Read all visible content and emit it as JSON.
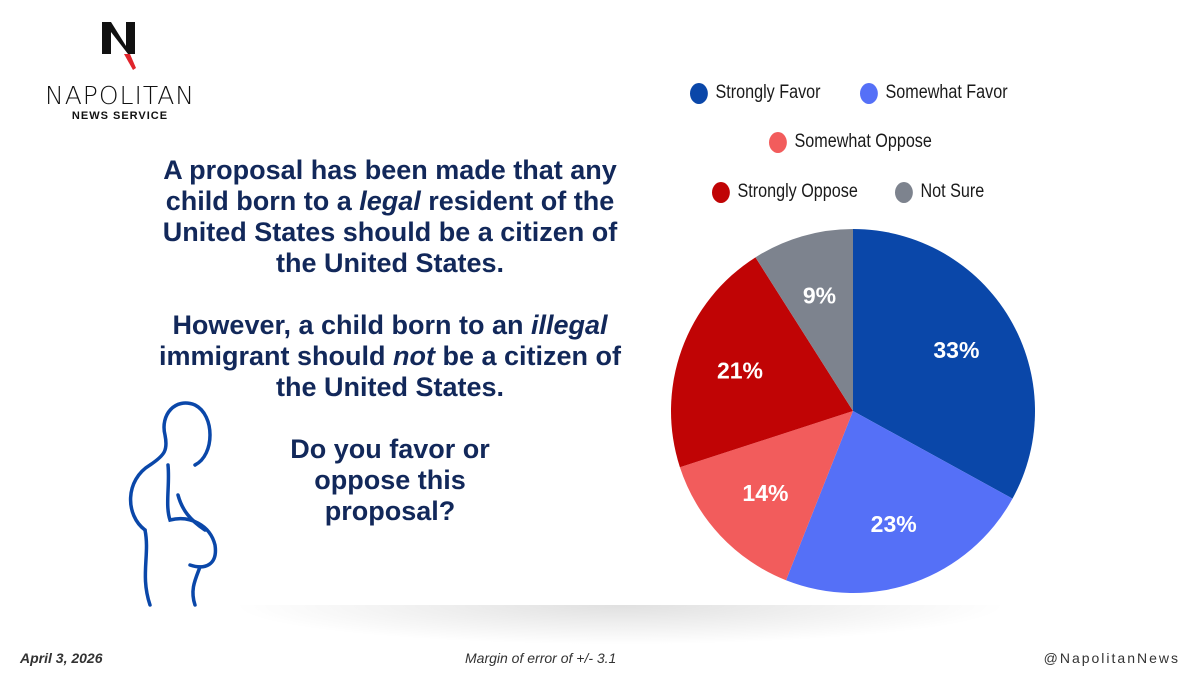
{
  "logo": {
    "name": "NAPOLITAN",
    "sub": "NEWS SERVICE"
  },
  "question": {
    "p1_pre": "A proposal has been made that any child born to a ",
    "p1_em": "legal",
    "p1_post": " resident of the United States should be a citizen of the United States.",
    "p2_pre": "However, a child born to an ",
    "p2_em": "illegal",
    "p2_mid": " immigrant should ",
    "p2_em2": "not",
    "p2_post": " be a citizen of the United States.",
    "p3": "Do you favor or oppose this proposal?"
  },
  "footer": {
    "date": "April 3, 2026",
    "margin": "Margin of error of +/- 3.1",
    "handle": "@NapolitanNews"
  },
  "chart_data": {
    "type": "pie",
    "title": "",
    "start": "12 o'clock, clockwise",
    "legend_position": "top",
    "slices": [
      {
        "label": "Strongly Favor",
        "value": 33,
        "display": "33%",
        "color": "#0a47a9"
      },
      {
        "label": "Somewhat Favor",
        "value": 23,
        "display": "23%",
        "color": "#5570f7"
      },
      {
        "label": "Somewhat Oppose",
        "value": 14,
        "display": "14%",
        "color": "#f25c5c"
      },
      {
        "label": "Strongly Oppose",
        "value": 21,
        "display": "21%",
        "color": "#c00405"
      },
      {
        "label": "Not Sure",
        "value": 9,
        "display": "9%",
        "color": "#7d838e"
      }
    ]
  }
}
